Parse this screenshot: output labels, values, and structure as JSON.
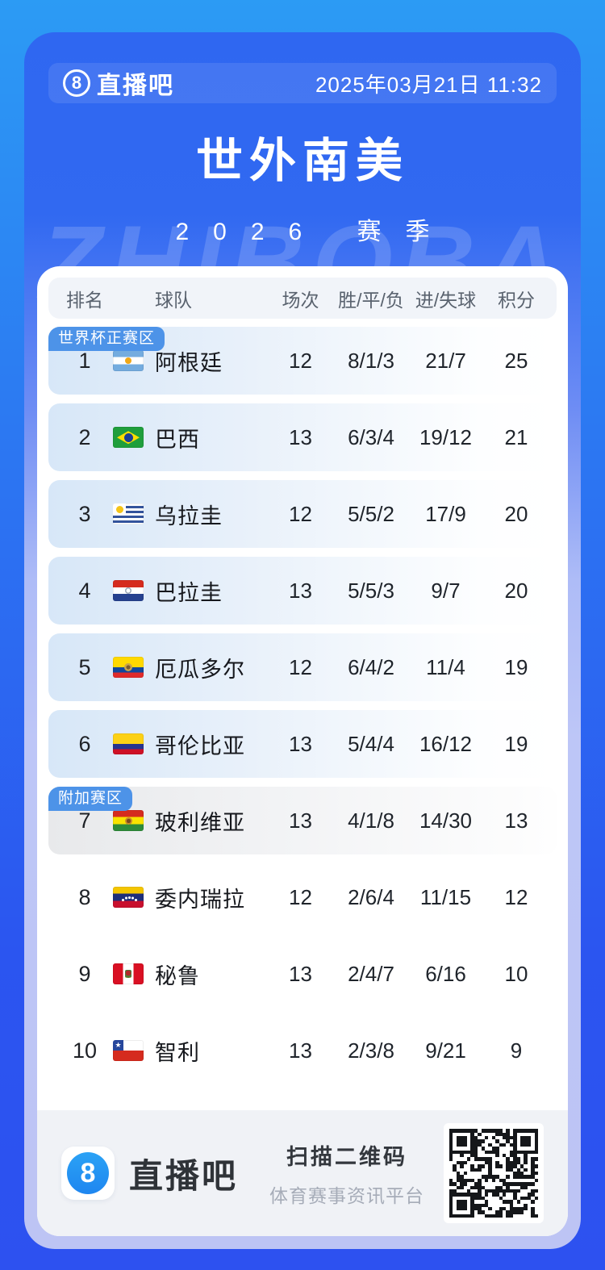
{
  "brand": {
    "badge": "8",
    "name": "直播吧"
  },
  "topbar": {
    "datetime": "2025年03月21日 11:32"
  },
  "hero": {
    "title": "世外南美",
    "season": "2026 赛季",
    "watermark": "ZHIBOBA"
  },
  "table": {
    "headers": {
      "rank": "排名",
      "team": "球队",
      "played": "场次",
      "wdl": "胜/平/负",
      "goals": "进/失球",
      "points": "积分"
    },
    "zone_labels": {
      "main": "世界杯正赛区",
      "playoff": "附加赛区"
    },
    "rows": [
      {
        "rank": "1",
        "flag": "ar",
        "team": "阿根廷",
        "played": "12",
        "wdl": "8/1/3",
        "goals": "21/7",
        "points": "25",
        "zone": "main",
        "badge": "世界杯正赛区"
      },
      {
        "rank": "2",
        "flag": "br",
        "team": "巴西",
        "played": "13",
        "wdl": "6/3/4",
        "goals": "19/12",
        "points": "21",
        "zone": "main"
      },
      {
        "rank": "3",
        "flag": "uy",
        "team": "乌拉圭",
        "played": "12",
        "wdl": "5/5/2",
        "goals": "17/9",
        "points": "20",
        "zone": "main"
      },
      {
        "rank": "4",
        "flag": "py",
        "team": "巴拉圭",
        "played": "13",
        "wdl": "5/5/3",
        "goals": "9/7",
        "points": "20",
        "zone": "main"
      },
      {
        "rank": "5",
        "flag": "ec",
        "team": "厄瓜多尔",
        "played": "12",
        "wdl": "6/4/2",
        "goals": "11/4",
        "points": "19",
        "zone": "main"
      },
      {
        "rank": "6",
        "flag": "co",
        "team": "哥伦比亚",
        "played": "13",
        "wdl": "5/4/4",
        "goals": "16/12",
        "points": "19",
        "zone": "main"
      },
      {
        "rank": "7",
        "flag": "bo",
        "team": "玻利维亚",
        "played": "13",
        "wdl": "4/1/8",
        "goals": "14/30",
        "points": "13",
        "zone": "playoff",
        "badge": "附加赛区"
      },
      {
        "rank": "8",
        "flag": "ve",
        "team": "委内瑞拉",
        "played": "12",
        "wdl": "2/6/4",
        "goals": "11/15",
        "points": "12",
        "zone": "out"
      },
      {
        "rank": "9",
        "flag": "pe",
        "team": "秘鲁",
        "played": "13",
        "wdl": "2/4/7",
        "goals": "6/16",
        "points": "10",
        "zone": "out"
      },
      {
        "rank": "10",
        "flag": "cl",
        "team": "智利",
        "played": "13",
        "wdl": "2/3/8",
        "goals": "9/21",
        "points": "9",
        "zone": "out"
      }
    ]
  },
  "footer": {
    "brand_badge": "8",
    "brand_name": "直播吧",
    "scan_title": "扫描二维码",
    "scan_subtitle": "体育赛事资讯平台"
  },
  "colors": {
    "accent_blue": "#2F67F1",
    "badge_blue": "#4D93E8",
    "row_highlight": "#D7E7F8",
    "footer_bg": "#F0F2F6"
  }
}
